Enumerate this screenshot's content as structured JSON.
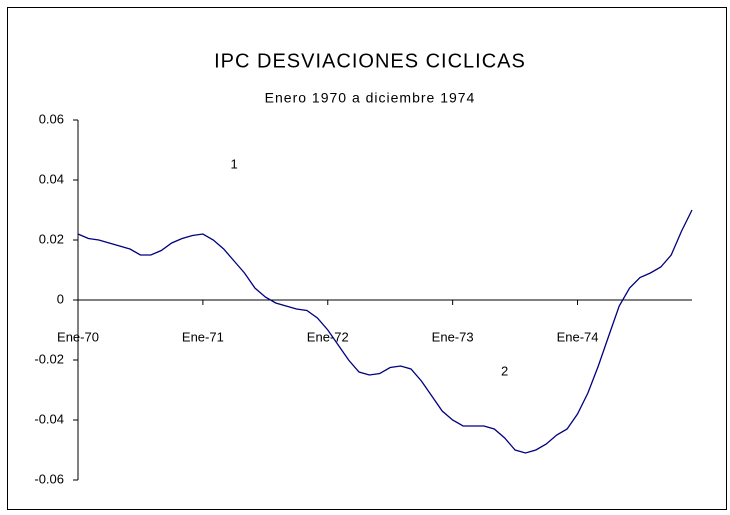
{
  "chart_data": {
    "type": "line",
    "title": "IPC DESVIACIONES CICLICAS",
    "subtitle": "Enero 1970 a diciembre 1974",
    "categories": [
      "Ene-70",
      null,
      null,
      null,
      null,
      null,
      null,
      null,
      null,
      null,
      null,
      null,
      "Ene-71",
      null,
      null,
      null,
      null,
      null,
      null,
      null,
      null,
      null,
      null,
      null,
      "Ene-72",
      null,
      null,
      null,
      null,
      null,
      null,
      null,
      null,
      null,
      null,
      null,
      "Ene-73",
      null,
      null,
      null,
      null,
      null,
      null,
      null,
      null,
      null,
      null,
      null,
      "Ene-74",
      null,
      null,
      null,
      null,
      null,
      null,
      null,
      null,
      null,
      null,
      null
    ],
    "series": [
      {
        "name": "IPC",
        "color": "#000080",
        "values": [
          0.022,
          0.0205,
          0.02,
          0.019,
          0.018,
          0.017,
          0.015,
          0.015,
          0.0165,
          0.019,
          0.0205,
          0.0215,
          0.022,
          0.02,
          0.017,
          0.013,
          0.009,
          0.004,
          0.001,
          -0.001,
          -0.002,
          -0.003,
          -0.0035,
          -0.006,
          -0.01,
          -0.015,
          -0.02,
          -0.024,
          -0.025,
          -0.0245,
          -0.0225,
          -0.022,
          -0.023,
          -0.027,
          -0.032,
          -0.037,
          -0.04,
          -0.042,
          -0.042,
          -0.042,
          -0.043,
          -0.046,
          -0.05,
          -0.051,
          -0.05,
          -0.048,
          -0.045,
          -0.043,
          -0.038,
          -0.031,
          -0.022,
          -0.012,
          -0.002,
          0.004,
          0.0075,
          0.009,
          0.011,
          0.015,
          0.023,
          0.03
        ]
      }
    ],
    "ylim": [
      -0.06,
      0.06
    ],
    "yticks": [
      -0.06,
      -0.04,
      -0.02,
      0,
      0.02,
      0.04,
      0.06
    ],
    "annotations": [
      {
        "text": "1",
        "x": 15,
        "y": 0.045
      },
      {
        "text": "2",
        "x": 41,
        "y": -0.024
      }
    ]
  }
}
